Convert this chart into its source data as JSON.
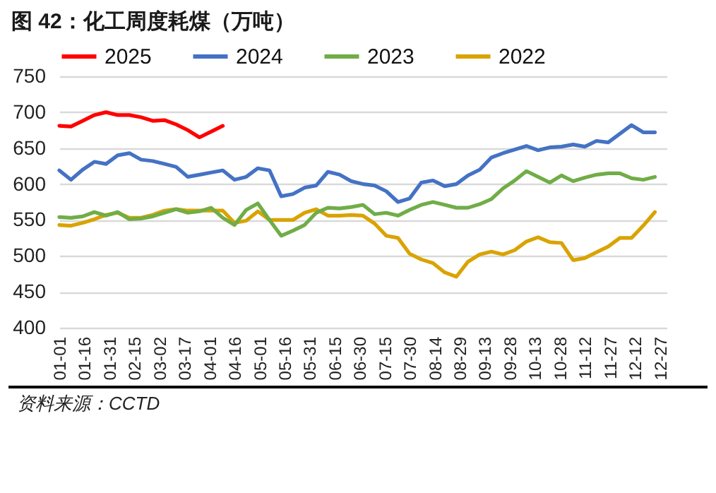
{
  "chart_data": {
    "type": "line",
    "title": "图 42：化工周度耗煤（万吨）",
    "annotations": [
      "资料来源：CCTD"
    ],
    "x": [
      "--01-01",
      "--01-08",
      "--01-15",
      "--01-22",
      "--01-29",
      "--02-05",
      "--02-12",
      "--02-19",
      "--02-26",
      "--03-05",
      "--03-12",
      "--03-19",
      "--03-26",
      "--04-02",
      "--04-09",
      "--04-16",
      "--04-23",
      "--04-30",
      "--05-07",
      "--05-14",
      "--05-21",
      "--05-28",
      "--06-04",
      "--06-11",
      "--06-18",
      "--06-25",
      "--07-02",
      "--07-09",
      "--07-16",
      "--07-23",
      "--07-30",
      "--08-06",
      "--08-13",
      "--08-20",
      "--08-27",
      "--09-03",
      "--09-10",
      "--09-17",
      "--09-24",
      "--10-01",
      "--10-08",
      "--10-15",
      "--10-22",
      "--10-29",
      "--11-05",
      "--11-12",
      "--11-19",
      "--11-26",
      "--12-03",
      "--12-10",
      "--12-17",
      "--12-24"
    ],
    "xlim": [
      "--01-01",
      "--12-31"
    ],
    "xticks": [
      {
        "value": "--01-01",
        "label": "01-01"
      },
      {
        "value": "--01-16",
        "label": "01-16"
      },
      {
        "value": "--01-31",
        "label": "01-31"
      },
      {
        "value": "--02-15",
        "label": "02-15"
      },
      {
        "value": "--03-02",
        "label": "03-02"
      },
      {
        "value": "--03-17",
        "label": "03-17"
      },
      {
        "value": "--04-01",
        "label": "04-01"
      },
      {
        "value": "--04-16",
        "label": "04-16"
      },
      {
        "value": "--05-01",
        "label": "05-01"
      },
      {
        "value": "--05-16",
        "label": "05-16"
      },
      {
        "value": "--05-31",
        "label": "05-31"
      },
      {
        "value": "--06-15",
        "label": "06-15"
      },
      {
        "value": "--06-30",
        "label": "06-30"
      },
      {
        "value": "--07-15",
        "label": "07-15"
      },
      {
        "value": "--07-30",
        "label": "07-30"
      },
      {
        "value": "--08-14",
        "label": "08-14"
      },
      {
        "value": "--08-29",
        "label": "08-29"
      },
      {
        "value": "--09-13",
        "label": "09-13"
      },
      {
        "value": "--09-28",
        "label": "09-28"
      },
      {
        "value": "--10-13",
        "label": "10-13"
      },
      {
        "value": "--10-28",
        "label": "10-28"
      },
      {
        "value": "--11-12",
        "label": "11-12"
      },
      {
        "value": "--11-27",
        "label": "11-27"
      },
      {
        "value": "--12-12",
        "label": "12-12"
      },
      {
        "value": "--12-27",
        "label": "12-27"
      }
    ],
    "ylim": [
      400,
      750
    ],
    "yticks": [
      400,
      450,
      500,
      550,
      600,
      650,
      700,
      750
    ],
    "grid": "y",
    "legend": "top",
    "series": [
      {
        "name": "2025",
        "color": "#ff0000",
        "x": [
          "--01-01",
          "--01-08",
          "--01-15",
          "--01-22",
          "--01-29",
          "--02-05",
          "--02-12",
          "--02-19",
          "--02-26",
          "--03-05",
          "--03-12",
          "--03-19",
          "--03-26",
          "--04-02",
          "--04-09"
        ],
        "values": [
          681,
          680,
          688,
          696,
          700,
          696,
          696,
          693,
          688,
          689,
          683,
          675,
          665,
          673,
          681
        ]
      },
      {
        "name": "2024",
        "color": "#4472c4",
        "values": [
          619,
          606,
          620,
          631,
          628,
          640,
          643,
          634,
          632,
          628,
          624,
          610,
          613,
          616,
          619,
          606,
          610,
          622,
          619,
          583,
          586,
          595,
          598,
          617,
          613,
          604,
          600,
          598,
          590,
          575,
          580,
          602,
          605,
          597,
          600,
          612,
          620,
          637,
          643,
          648,
          653,
          647,
          651,
          652,
          655,
          652,
          660,
          658,
          670,
          682,
          672,
          672
        ]
      },
      {
        "name": "2023",
        "color": "#70ad47",
        "values": [
          554,
          553,
          555,
          561,
          556,
          561,
          551,
          552,
          555,
          560,
          565,
          560,
          562,
          567,
          553,
          543,
          564,
          573,
          550,
          528,
          535,
          543,
          560,
          567,
          566,
          568,
          571,
          558,
          560,
          556,
          564,
          571,
          575,
          571,
          567,
          567,
          572,
          579,
          594,
          605,
          618,
          610,
          602,
          612,
          604,
          609,
          613,
          615,
          615,
          608,
          606,
          610
        ]
      },
      {
        "name": "2022",
        "color": "#d9a300",
        "values": [
          543,
          542,
          546,
          551,
          557,
          560,
          553,
          553,
          557,
          563,
          565,
          563,
          563,
          563,
          563,
          546,
          549,
          562,
          550,
          550,
          550,
          560,
          565,
          556,
          556,
          557,
          556,
          545,
          528,
          525,
          503,
          495,
          490,
          477,
          471,
          492,
          502,
          506,
          502,
          508,
          520,
          526,
          519,
          518,
          494,
          497,
          505,
          513,
          525,
          525,
          542,
          561
        ]
      }
    ]
  }
}
